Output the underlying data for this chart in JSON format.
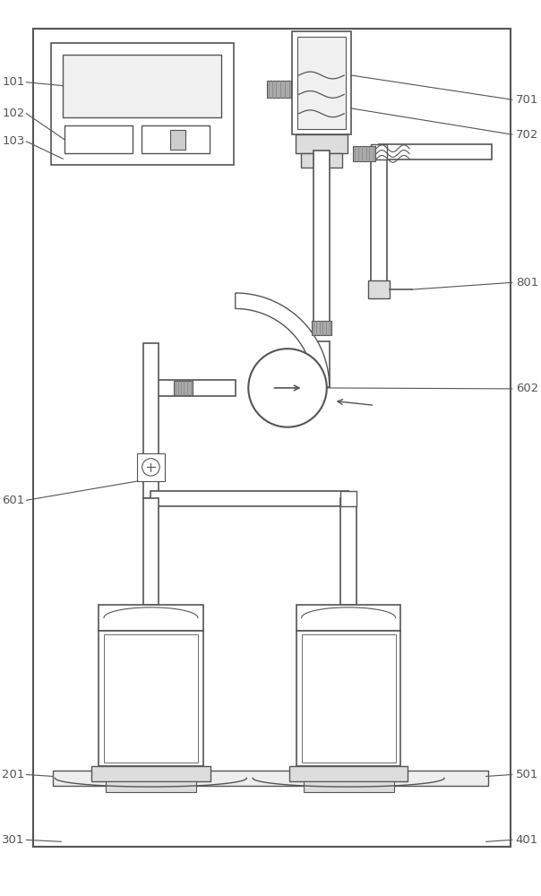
{
  "bg_color": "#ffffff",
  "lc": "#555555",
  "lc2": "#333333",
  "gray": "#aaaaaa",
  "lgray": "#dddddd",
  "dgray": "#888888"
}
